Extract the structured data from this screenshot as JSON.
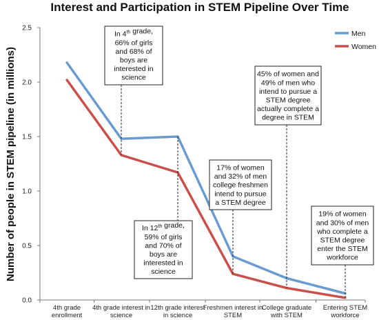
{
  "chart_data": {
    "type": "line",
    "title": "Interest and Participation in STEM Pipeline Over Time",
    "ylabel": "Number of people in STEM pipeline (in millions)",
    "xlabel": "",
    "ylim": [
      0,
      2.5
    ],
    "yticks": [
      "0.0",
      "0.5",
      "1.0",
      "1.5",
      "2.0",
      "2.5"
    ],
    "categories": [
      [
        "4th grade",
        "enrollment"
      ],
      [
        "4th grade interest in",
        "science"
      ],
      [
        "12th grade interest",
        "in science"
      ],
      [
        "Freshmen interest in",
        "STEM"
      ],
      [
        "College graduate",
        "with STEM"
      ],
      [
        "Entering STEM",
        "workforce"
      ]
    ],
    "series": [
      {
        "name": "Men",
        "color": "#6a9bd0",
        "values": [
          2.18,
          1.48,
          1.5,
          0.4,
          0.2,
          0.06
        ]
      },
      {
        "name": "Women",
        "color": "#c9504a",
        "values": [
          2.02,
          1.33,
          1.17,
          0.24,
          0.11,
          0.02
        ]
      }
    ],
    "legend_position": "top-right",
    "grid": false,
    "annotations": [
      {
        "category_index": 1,
        "lines": [
          [
            {
              "t": "In 4"
            },
            {
              "t": "th",
              "sup": true
            },
            {
              "t": " grade,"
            }
          ],
          [
            {
              "t": "66% of girls"
            }
          ],
          [
            {
              "t": "and 68% of"
            }
          ],
          [
            {
              "t": "boys are"
            }
          ],
          [
            {
              "t": "interested in"
            }
          ],
          [
            {
              "t": "science"
            }
          ]
        ]
      },
      {
        "category_index": 2,
        "lines": [
          [
            {
              "t": "In 12"
            },
            {
              "t": "th",
              "sup": true
            },
            {
              "t": " grade,"
            }
          ],
          [
            {
              "t": "59% of girls"
            }
          ],
          [
            {
              "t": "and 70% of"
            }
          ],
          [
            {
              "t": "boys are"
            }
          ],
          [
            {
              "t": "interested in"
            }
          ],
          [
            {
              "t": "science"
            }
          ]
        ]
      },
      {
        "category_index": 3,
        "lines": [
          [
            {
              "t": "17% of women"
            }
          ],
          [
            {
              "t": "and 32% of men"
            }
          ],
          [
            {
              "t": "college freshmen"
            }
          ],
          [
            {
              "t": "intend to pursue"
            }
          ],
          [
            {
              "t": "a STEM degree"
            }
          ]
        ]
      },
      {
        "category_index": 4,
        "lines": [
          [
            {
              "t": "45% of women and"
            }
          ],
          [
            {
              "t": "49% of men who"
            }
          ],
          [
            {
              "t": "intend to pursue a"
            }
          ],
          [
            {
              "t": "STEM degree"
            }
          ],
          [
            {
              "t": "actually complete a"
            }
          ],
          [
            {
              "t": "degree in STEM"
            }
          ]
        ]
      },
      {
        "category_index": 5,
        "lines": [
          [
            {
              "t": "19% of women"
            }
          ],
          [
            {
              "t": "and 30% of men"
            }
          ],
          [
            {
              "t": "who complete a"
            }
          ],
          [
            {
              "t": "STEM degree"
            }
          ],
          [
            {
              "t": "enter the STEM"
            }
          ],
          [
            {
              "t": "workforce"
            }
          ]
        ]
      }
    ]
  }
}
